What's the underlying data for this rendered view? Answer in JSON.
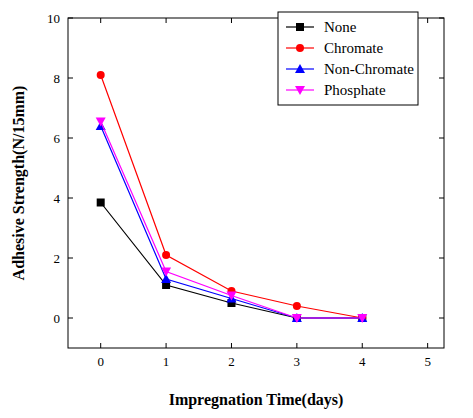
{
  "chart_data": {
    "type": "line",
    "x_label": "Impregnation Time(days)",
    "y_label": "Adhesive Strength(N/15mm)",
    "x": [
      0,
      1,
      2,
      3,
      4
    ],
    "series": [
      {
        "name": "None",
        "color": "#000000",
        "marker": "square",
        "values": [
          3.85,
          1.1,
          0.5,
          0,
          0
        ]
      },
      {
        "name": "Chromate",
        "color": "#ff0000",
        "marker": "circle",
        "values": [
          8.1,
          2.1,
          0.9,
          0.4,
          0
        ]
      },
      {
        "name": "Non-Chromate",
        "color": "#0000ff",
        "marker": "triangle-up",
        "values": [
          6.4,
          1.3,
          0.65,
          0,
          0
        ]
      },
      {
        "name": "Phosphate",
        "color": "#ff00ff",
        "marker": "triangle-down",
        "values": [
          6.55,
          1.55,
          0.75,
          0,
          0
        ]
      }
    ],
    "xlim": [
      -0.5,
      5.25
    ],
    "xticks": [
      0,
      1,
      2,
      3,
      4,
      5
    ],
    "ylim": [
      -1,
      10
    ],
    "yticks": [
      0,
      2,
      4,
      6,
      8,
      10
    ],
    "grid": false,
    "legend": "upper right"
  }
}
